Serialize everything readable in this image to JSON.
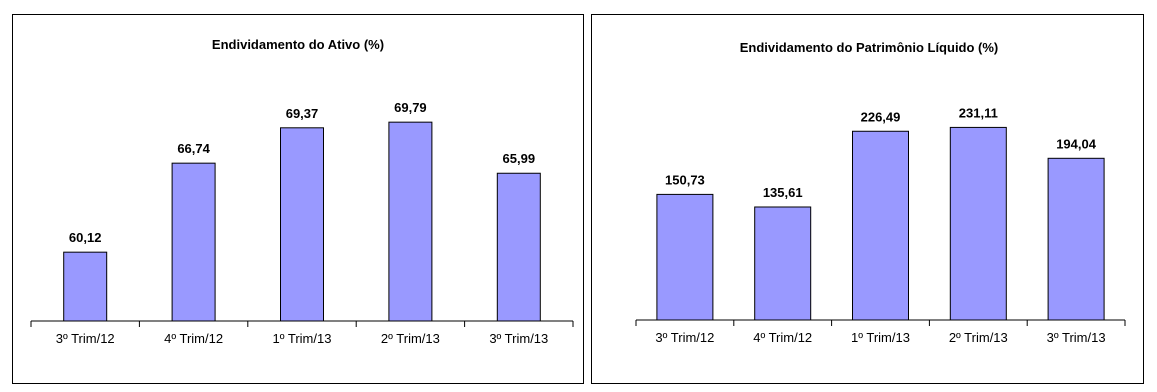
{
  "chart_data": [
    {
      "type": "bar",
      "title": "Endividamento do Ativo (%)",
      "categories": [
        "3º Trim/12",
        "4º Trim/12",
        "1º Trim/13",
        "2º Trim/13",
        "3º Trim/13"
      ],
      "values": [
        60.12,
        66.74,
        69.37,
        69.79,
        65.99
      ],
      "value_labels": [
        "60,12",
        "66,74",
        "69,37",
        "69,79",
        "65,99"
      ],
      "xlabel": "",
      "ylabel": "",
      "ylim": [
        55,
        73
      ],
      "grid": false,
      "legend": "none",
      "bar_color": "#9999ff"
    },
    {
      "type": "bar",
      "title": "Endividamento do Patrimônio Líquido (%)",
      "categories": [
        "3º Trim/12",
        "4º Trim/12",
        "1º Trim/13",
        "2º Trim/13",
        "3º Trim/13"
      ],
      "values": [
        150.73,
        135.61,
        226.49,
        231.11,
        194.04
      ],
      "value_labels": [
        "150,73",
        "135,61",
        "226,49",
        "231,11",
        "194,04"
      ],
      "xlabel": "",
      "ylabel": "",
      "ylim": [
        0,
        240
      ],
      "grid": false,
      "legend": "none",
      "bar_color": "#9999ff"
    }
  ]
}
